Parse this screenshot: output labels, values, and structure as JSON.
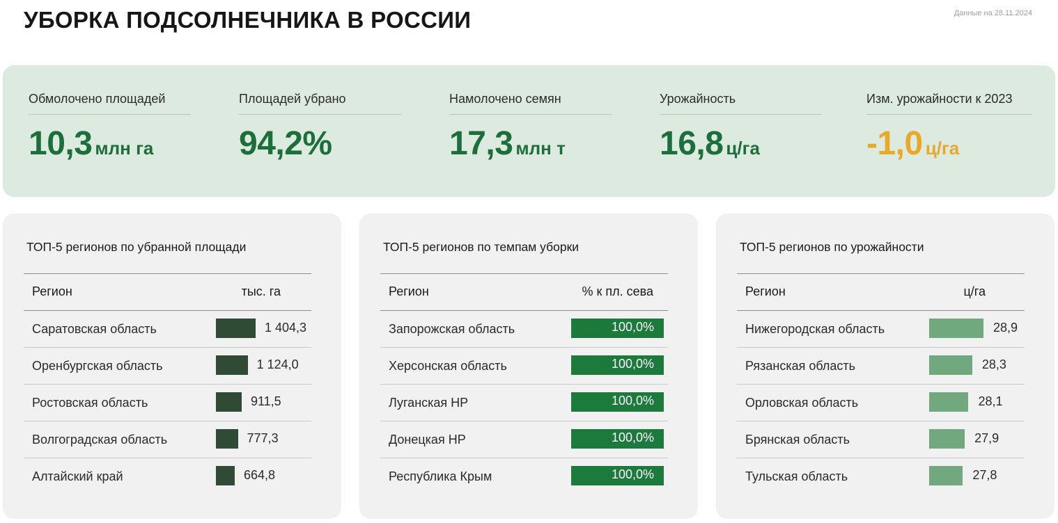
{
  "header": {
    "title": "УБОРКА ПОДСОЛНЕЧНИКА В РОССИИ",
    "as_of": "Данные на 28.11.2024"
  },
  "kpis": [
    {
      "label": "Обмолочено площадей",
      "value": "10,3",
      "unit": "млн га",
      "negative": false
    },
    {
      "label": "Площадей убрано",
      "value": "94,2%",
      "unit": "",
      "negative": false
    },
    {
      "label": "Намолочено семян",
      "value": "17,3",
      "unit": "млн т",
      "negative": false
    },
    {
      "label": "Урожайность",
      "value": "16,8",
      "unit": "ц/га",
      "negative": false
    },
    {
      "label": "Изм. урожайности к 2023",
      "value": "-1,0",
      "unit": "ц/га",
      "negative": true
    }
  ],
  "colors": {
    "kpi_green": "#1c6e3a",
    "kpi_negative": "#e8a928",
    "bar_dark": "#2f4b36",
    "bar_green": "#1d7a3d",
    "bar_light": "#72a87e"
  },
  "tables": [
    {
      "title": "ТОП-5 регионов по убранной площади",
      "col_region": "Регион",
      "col_unit": "тыс. га",
      "bar_style": "dark",
      "value_inside": false,
      "max": 1404.3,
      "rows": [
        {
          "region": "Саратовская область",
          "value": 1404.3,
          "label": "1 404,3"
        },
        {
          "region": "Оренбургская область",
          "value": 1124.0,
          "label": "1 124,0"
        },
        {
          "region": "Ростовская область",
          "value": 911.5,
          "label": "911,5"
        },
        {
          "region": "Волгоградская область",
          "value": 777.3,
          "label": "777,3"
        },
        {
          "region": "Алтайский край",
          "value": 664.8,
          "label": "664,8"
        }
      ]
    },
    {
      "title": "ТОП-5 регионов по темпам уборки",
      "col_region": "Регион",
      "col_unit": "% к пл. сева",
      "bar_style": "green",
      "value_inside": true,
      "max": 100,
      "rows": [
        {
          "region": "Запорожская область",
          "value": 100,
          "label": "100,0%"
        },
        {
          "region": "Херсонская область",
          "value": 100,
          "label": "100,0%"
        },
        {
          "region": "Луганская НР",
          "value": 100,
          "label": "100,0%"
        },
        {
          "region": "Донецкая НР",
          "value": 100,
          "label": "100,0%"
        },
        {
          "region": "Республика Крым",
          "value": 100,
          "label": "100,0%"
        }
      ]
    },
    {
      "title": "ТОП-5 регионов по урожайности",
      "col_region": "Регион",
      "col_unit": "ц/га",
      "bar_style": "light",
      "value_inside": false,
      "max": 28.9,
      "rows": [
        {
          "region": "Нижегородская область",
          "value": 28.9,
          "label": "28,9"
        },
        {
          "region": "Рязанская область",
          "value": 28.3,
          "label": "28,3"
        },
        {
          "region": "Орловская область",
          "value": 28.1,
          "label": "28,1"
        },
        {
          "region": "Брянская область",
          "value": 27.9,
          "label": "27,9"
        },
        {
          "region": "Тульская область",
          "value": 27.8,
          "label": "27,8"
        }
      ]
    }
  ]
}
